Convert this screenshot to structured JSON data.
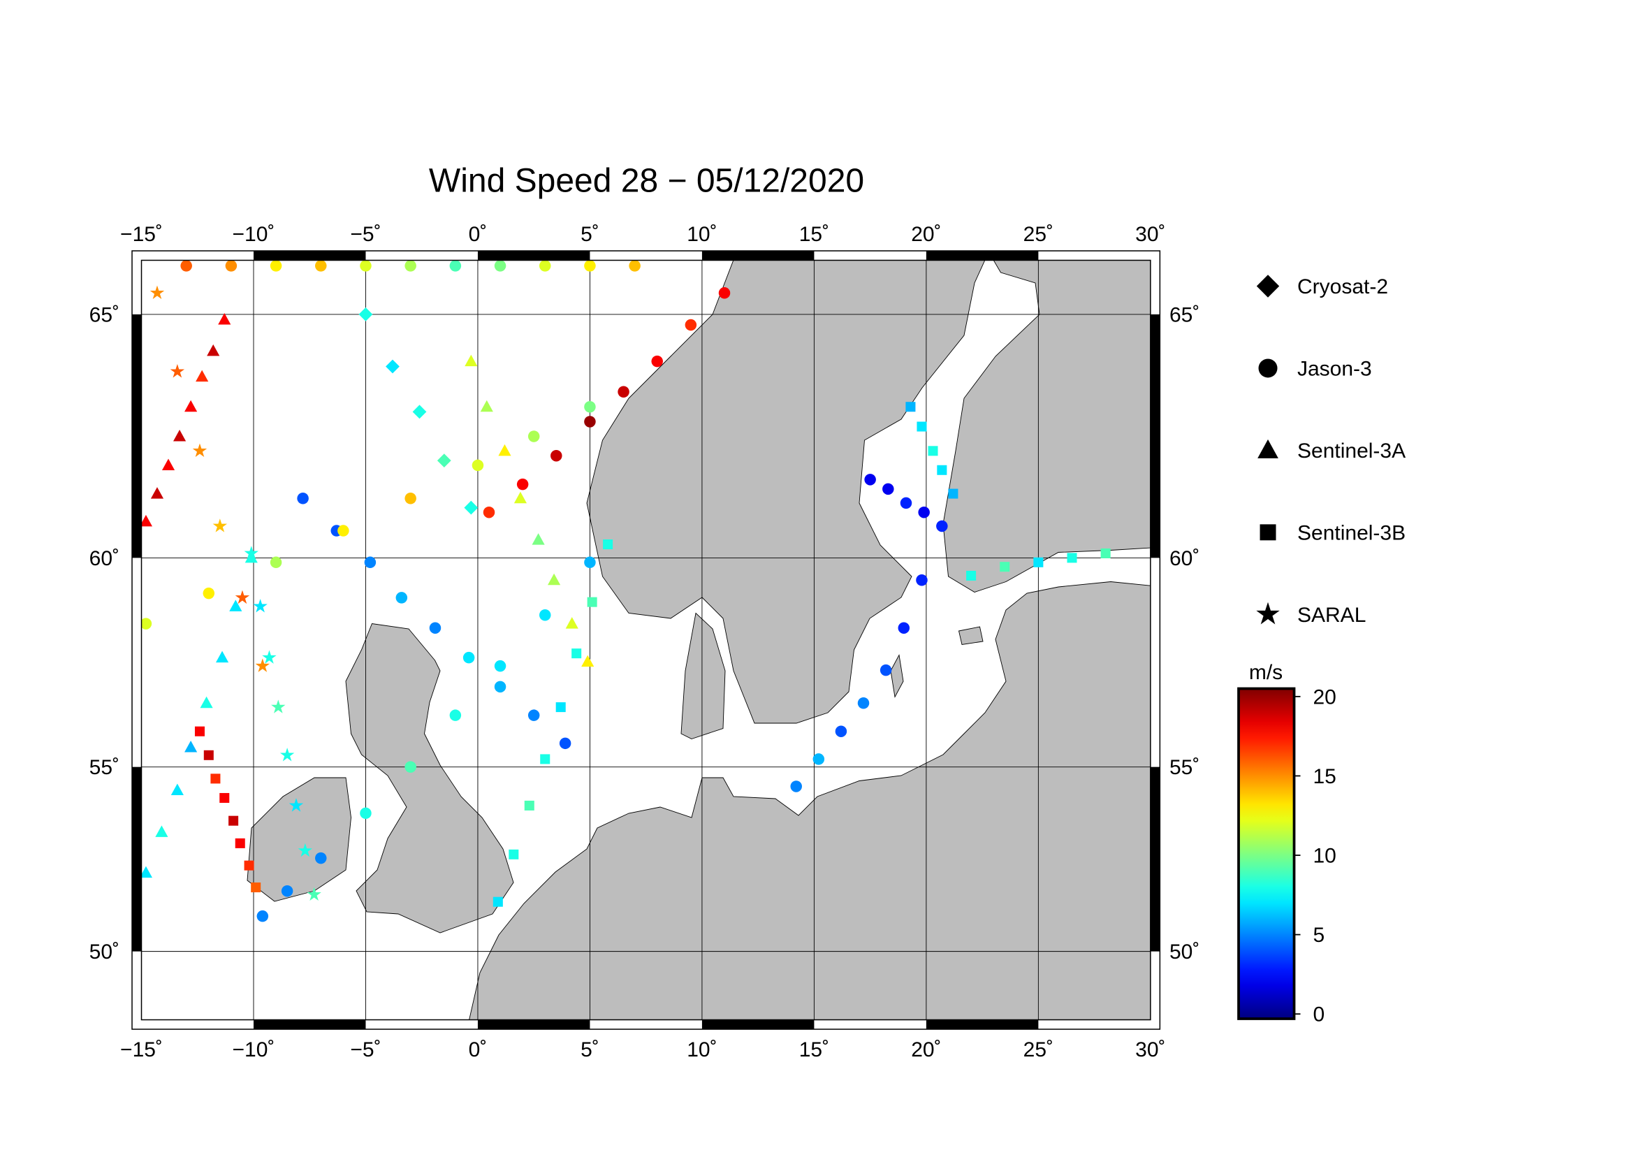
{
  "chart_data": {
    "type": "satellite-track-map",
    "title": "Wind Speed 28 − 05/12/2020",
    "projection": "mercator",
    "lonlim": [
      -15,
      30
    ],
    "latlim": [
      48,
      66
    ],
    "xticks": [
      {
        "value": -15,
        "label": "−15˚"
      },
      {
        "value": -10,
        "label": "−10˚"
      },
      {
        "value": -5,
        "label": "−5˚"
      },
      {
        "value": 0,
        "label": "0˚"
      },
      {
        "value": 5,
        "label": "5˚"
      },
      {
        "value": 10,
        "label": "10˚"
      },
      {
        "value": 15,
        "label": "15˚"
      },
      {
        "value": 20,
        "label": "20˚"
      },
      {
        "value": 25,
        "label": "25˚"
      },
      {
        "value": 30,
        "label": "30˚"
      }
    ],
    "yticks": [
      {
        "value": 50,
        "label": "50˚"
      },
      {
        "value": 55,
        "label": "55˚"
      },
      {
        "value": 60,
        "label": "60˚"
      },
      {
        "value": 65,
        "label": "65˚"
      }
    ],
    "grid": true,
    "colormap": "jet",
    "colorbar_label": "m/s",
    "clim": [
      -0.3,
      20.5
    ],
    "cticks": [
      0,
      5,
      10,
      15,
      20
    ],
    "series": [
      {
        "name": "Cryosat-2",
        "marker": "diamond",
        "tracks": [
          {
            "lon": [
              -5,
              -3.8,
              -2.6,
              -1.5,
              -0.3
            ],
            "lat": [
              65,
              64,
              63.1,
              62.1,
              61.1
            ],
            "values": [
              8,
              7,
              8,
              9,
              8
            ]
          }
        ]
      },
      {
        "name": "Jason-3",
        "marker": "circle",
        "tracks": [
          {
            "lon": [
              0.5,
              2,
              3.5,
              5,
              6.5,
              8,
              9.5,
              11
            ],
            "lat": [
              61.0,
              61.6,
              62.2,
              62.9,
              63.5,
              64.1,
              64.8,
              65.4
            ],
            "values": [
              17,
              18,
              19,
              20,
              19,
              18,
              17,
              18
            ]
          },
          {
            "lon": [
              -7.8,
              -6.3,
              -4.8,
              -3.4,
              -1.9,
              -0.4,
              1.0,
              2.5,
              3.9
            ],
            "lat": [
              61.3,
              60.6,
              59.9,
              59.1,
              58.4,
              57.7,
              57.0,
              56.3,
              55.6
            ],
            "values": [
              4,
              4,
              5,
              6,
              5,
              7,
              6,
              5,
              4
            ]
          },
          {
            "lon": [
              5,
              3,
              1,
              -1,
              -3,
              -5,
              -7,
              -8.5,
              -9.6
            ],
            "lat": [
              59.9,
              58.7,
              57.5,
              56.3,
              55.0,
              53.8,
              52.6,
              51.7,
              51.0
            ],
            "values": [
              6,
              7,
              7,
              8,
              9,
              8,
              5,
              5,
              5
            ]
          },
          {
            "lon": [
              -14.8,
              -12,
              -9,
              -6,
              -3,
              0,
              2.5,
              5
            ],
            "lat": [
              58.5,
              59.2,
              59.9,
              60.6,
              61.3,
              62.0,
              62.6,
              63.2
            ],
            "values": [
              12,
              13,
              11,
              13,
              14,
              12,
              11,
              10
            ]
          },
          {
            "lon": [
              14.2,
              15.2,
              16.2,
              17.2,
              18.2,
              19.0,
              19.8
            ],
            "lat": [
              54.5,
              55.2,
              55.9,
              56.6,
              57.4,
              58.4,
              59.5
            ],
            "values": [
              5,
              6,
              4,
              5,
              4,
              3,
              3
            ]
          },
          {
            "lon": [
              17.5,
              18.3,
              19.1,
              19.9,
              20.7
            ],
            "lat": [
              61.7,
              61.5,
              61.2,
              61.0,
              60.7
            ],
            "values": [
              2,
              2,
              3,
              2,
              3
            ]
          },
          {
            "lon": [
              -13,
              -11,
              -9,
              -7,
              -5,
              -3,
              -1,
              1,
              3,
              5,
              7
            ],
            "lat": [
              65.9,
              65.9,
              65.9,
              65.9,
              65.9,
              65.9,
              65.9,
              65.9,
              65.9,
              65.9,
              65.9
            ],
            "values": [
              16,
              15,
              13,
              14,
              12,
              11,
              9,
              10,
              12,
              13,
              14
            ]
          }
        ]
      },
      {
        "name": "Sentinel-3A",
        "marker": "triangle",
        "tracks": [
          {
            "lon": [
              -14.8,
              -14.3,
              -13.8,
              -13.3,
              -12.8,
              -12.3,
              -11.8,
              -11.3
            ],
            "lat": [
              60.8,
              61.4,
              62.0,
              62.6,
              63.2,
              63.8,
              64.3,
              64.9
            ],
            "values": [
              18,
              19,
              18,
              19,
              18,
              17,
              19,
              18
            ]
          },
          {
            "lon": [
              -14.8,
              -14.1,
              -13.4,
              -12.8,
              -12.1,
              -11.4,
              -10.8,
              -10.1
            ],
            "lat": [
              52.2,
              53.3,
              54.4,
              55.5,
              56.6,
              57.7,
              58.9,
              60.0
            ],
            "values": [
              7,
              8,
              7,
              6,
              8,
              7,
              7,
              8
            ]
          },
          {
            "lon": [
              -0.3,
              0.4,
              1.2,
              1.9,
              2.7,
              3.4,
              4.2,
              4.9
            ],
            "lat": [
              64.1,
              63.2,
              62.3,
              61.3,
              60.4,
              59.5,
              58.5,
              57.6
            ],
            "values": [
              12,
              11,
              13,
              12,
              10,
              11,
              12,
              13
            ]
          }
        ]
      },
      {
        "name": "Sentinel-3B",
        "marker": "square",
        "tracks": [
          {
            "lon": [
              -12.4,
              -12.0,
              -11.7,
              -11.3,
              -10.9,
              -10.6,
              -10.2,
              -9.9
            ],
            "lat": [
              55.9,
              55.3,
              54.7,
              54.2,
              53.6,
              53.0,
              52.4,
              51.8
            ],
            "values": [
              18,
              19,
              17,
              18,
              19,
              18,
              17,
              16
            ]
          },
          {
            "lon": [
              0.9,
              1.6,
              2.3,
              3.0,
              3.7,
              4.4,
              5.1,
              5.8
            ],
            "lat": [
              51.4,
              52.7,
              54.0,
              55.2,
              56.5,
              57.8,
              59.0,
              60.3
            ],
            "values": [
              7,
              8,
              9,
              8,
              7,
              8,
              9,
              8
            ]
          },
          {
            "lon": [
              22,
              23.5,
              25,
              26.5,
              28
            ],
            "lat": [
              59.6,
              59.8,
              59.9,
              60.0,
              60.1
            ],
            "values": [
              8,
              9,
              7,
              8,
              9
            ]
          },
          {
            "lon": [
              19.3,
              19.8,
              20.3,
              20.7,
              21.2
            ],
            "lat": [
              63.2,
              62.8,
              62.3,
              61.9,
              61.4
            ],
            "values": [
              6,
              7,
              8,
              7,
              6
            ]
          }
        ]
      },
      {
        "name": "SARAL",
        "marker": "star",
        "tracks": [
          {
            "lon": [
              -10.1,
              -9.7,
              -9.3,
              -8.9,
              -8.5,
              -8.1,
              -7.7,
              -7.3
            ],
            "lat": [
              60.1,
              58.9,
              57.7,
              56.5,
              55.3,
              54.0,
              52.8,
              51.6
            ],
            "values": [
              8,
              7,
              8,
              9,
              8,
              7,
              8,
              9
            ]
          },
          {
            "lon": [
              -9.6,
              -10.5,
              -11.5,
              -12.4,
              -13.4,
              -14.3
            ],
            "lat": [
              57.5,
              59.1,
              60.7,
              62.3,
              63.9,
              65.4
            ],
            "values": [
              15,
              16,
              14,
              15,
              16,
              15
            ]
          }
        ]
      }
    ]
  }
}
